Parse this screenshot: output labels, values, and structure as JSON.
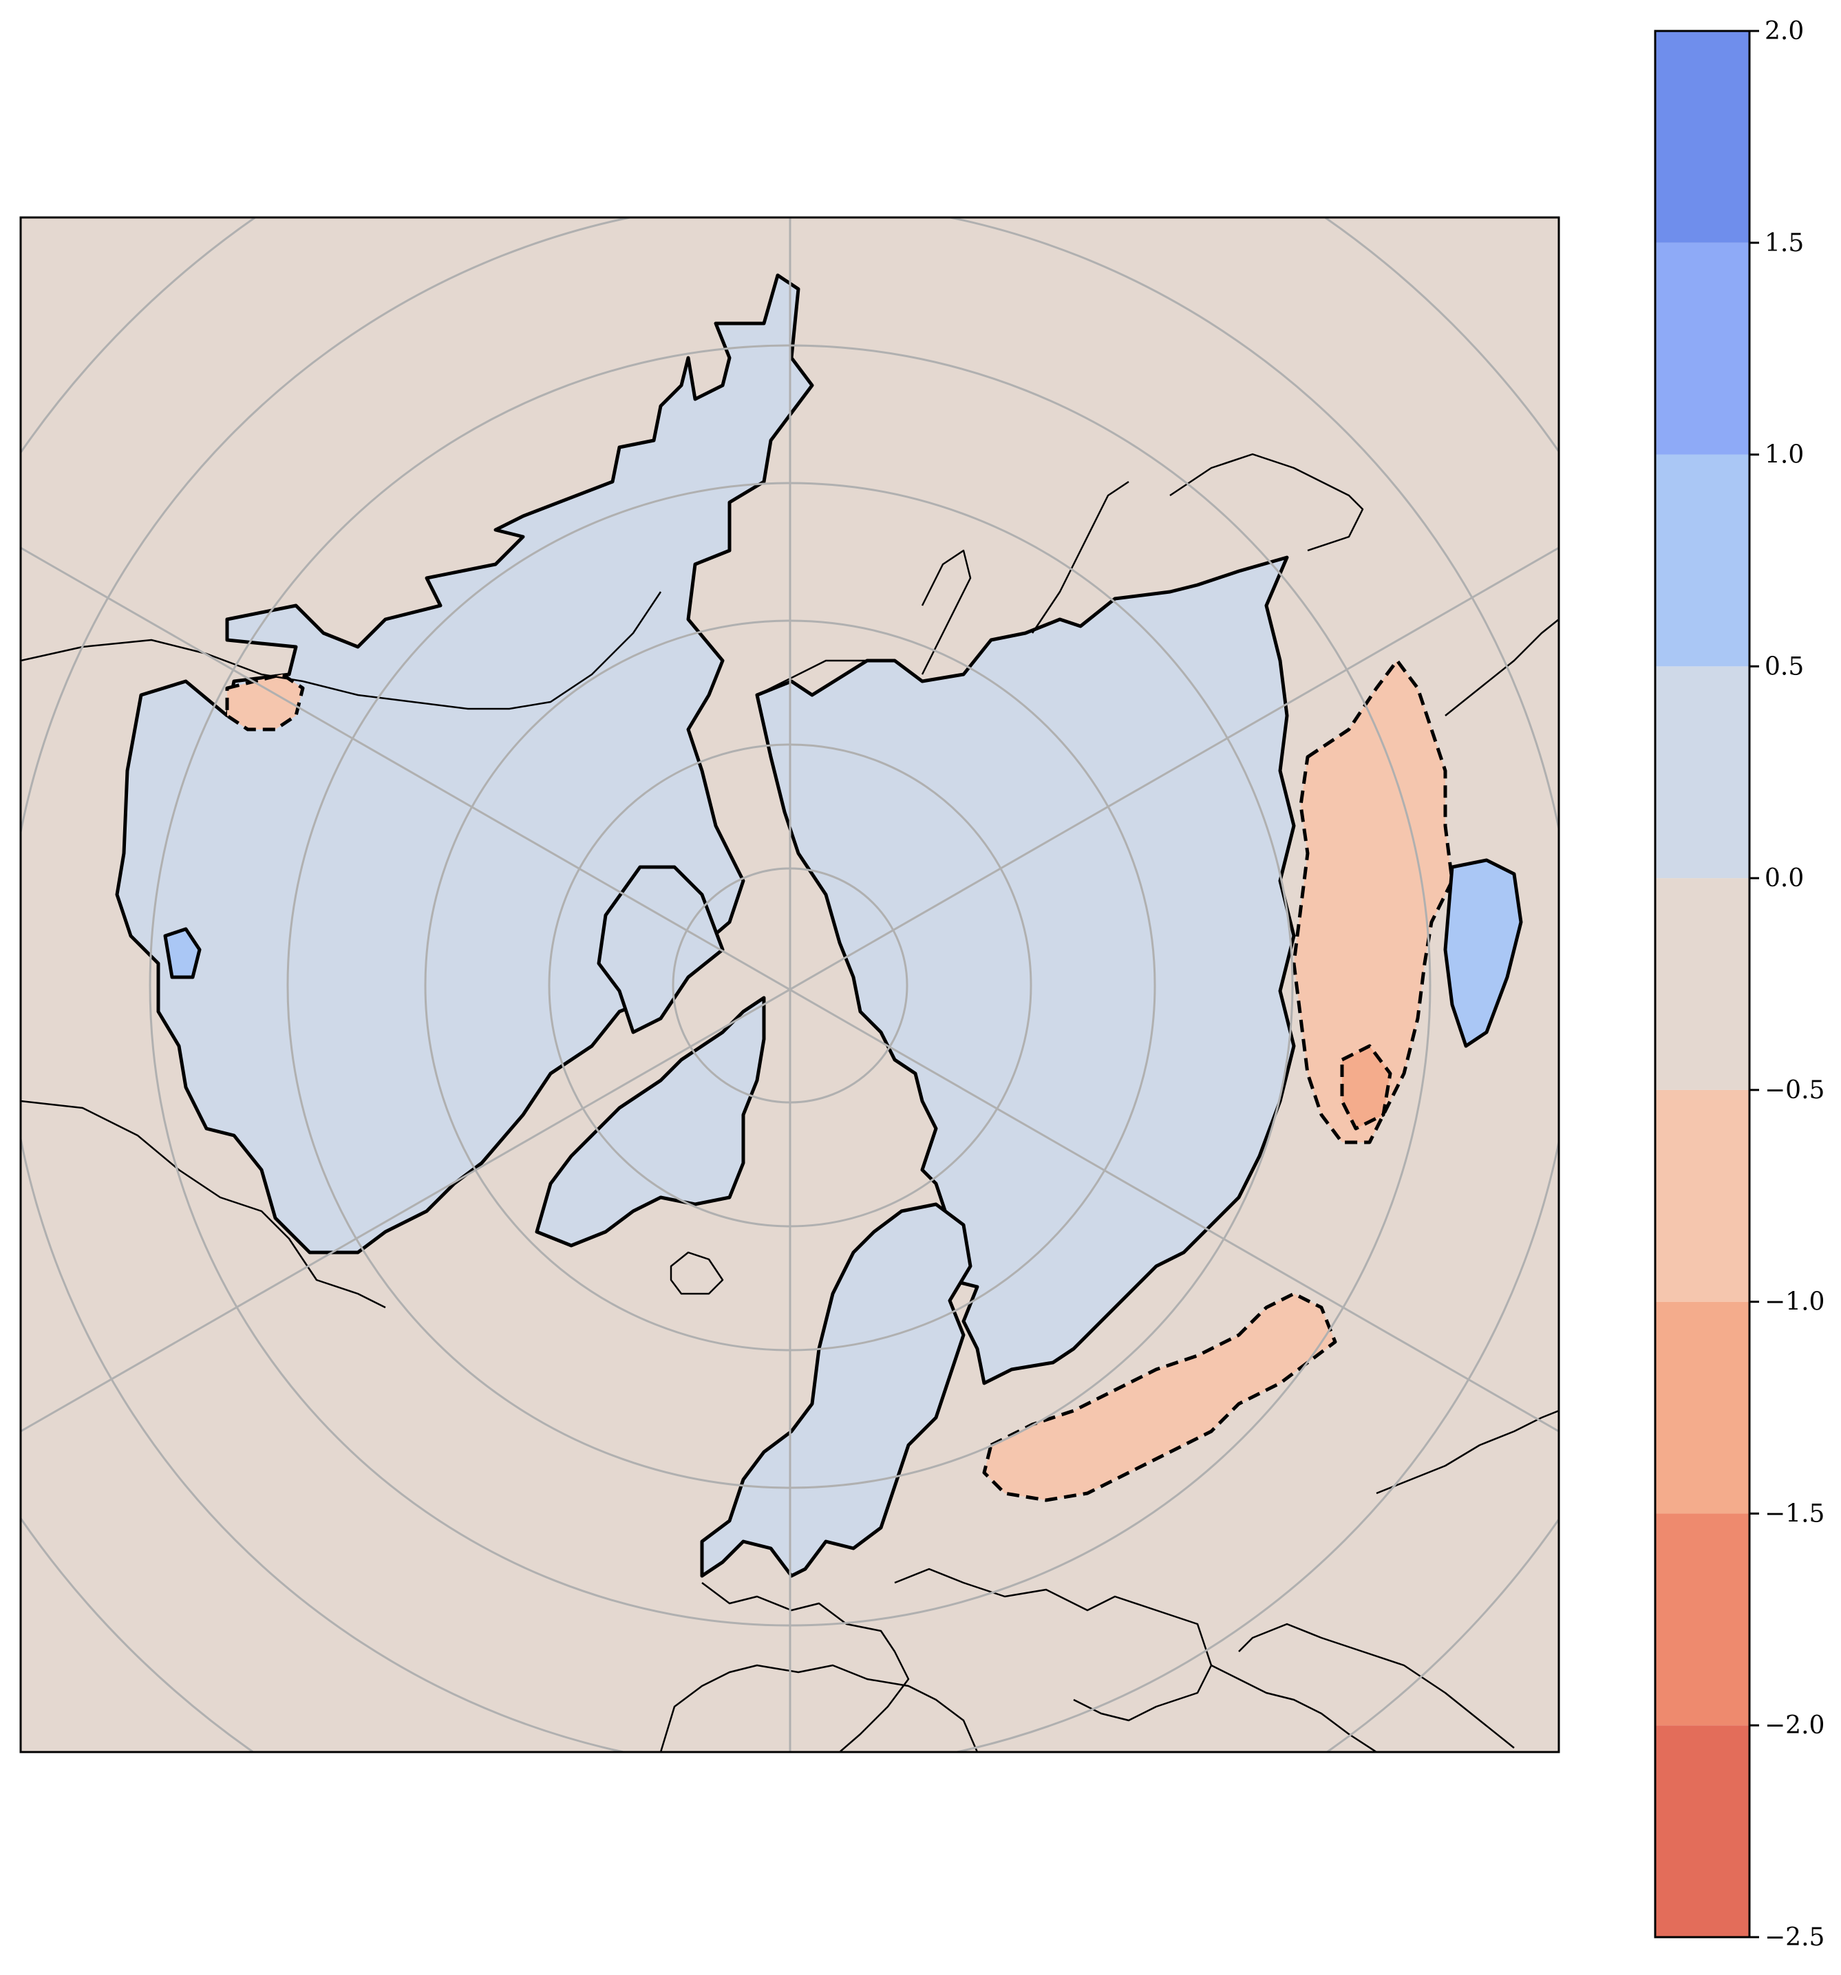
{
  "chart_data": {
    "type": "heatmap",
    "projection": "north-polar-stereographic",
    "title": "",
    "grid": true,
    "colorbar": {
      "orientation": "vertical",
      "placement": "right",
      "levels": [
        -2.5,
        -2.0,
        -1.5,
        -1.0,
        -0.5,
        0.0,
        0.5,
        1.0,
        1.5,
        2.0
      ],
      "tick_labels": [
        "−2.5",
        "−2.0",
        "−1.5",
        "−1.0",
        "−0.5",
        "0.0",
        "0.5",
        "1.0",
        "1.5",
        "2.0"
      ],
      "colors": [
        "#e36d5a",
        "#ee8a6e",
        "#f4ac8c",
        "#f5c6ae",
        "#e4d8d0",
        "#cfd9e8",
        "#aac7f5",
        "#8eaaf7",
        "#6f8eec"
      ]
    },
    "background_level_color": "#e4d8d0",
    "regions": [
      {
        "name": "",
        "value": 0.25
      },
      {
        "name": "",
        "value": -0.75
      },
      {
        "name": "",
        "value": -1.25
      },
      {
        "name": "",
        "value": 0.75
      }
    ]
  }
}
